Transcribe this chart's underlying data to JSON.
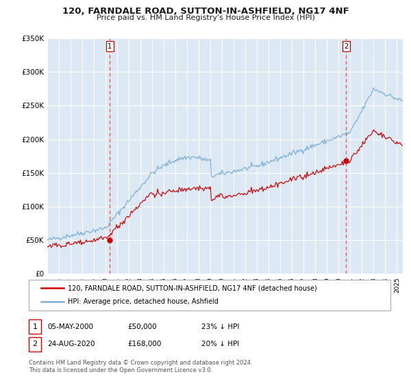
{
  "title": "120, FARNDALE ROAD, SUTTON-IN-ASHFIELD, NG17 4NF",
  "subtitle": "Price paid vs. HM Land Registry's House Price Index (HPI)",
  "plot_bg_color": "#dce9f5",
  "hpi_color": "#7bafd4",
  "price_color": "#cc0000",
  "purchase1_year": 2000.35,
  "purchase1_price": 50000,
  "purchase2_year": 2020.65,
  "purchase2_price": 168000,
  "legend_price_label": "120, FARNDALE ROAD, SUTTON-IN-ASHFIELD, NG17 4NF (detached house)",
  "legend_hpi_label": "HPI: Average price, detached house, Ashfield",
  "annotation1_date": "05-MAY-2000",
  "annotation1_price": "£50,000",
  "annotation1_pct": "23% ↓ HPI",
  "annotation2_date": "24-AUG-2020",
  "annotation2_price": "£168,000",
  "annotation2_pct": "20% ↓ HPI",
  "footer": "Contains HM Land Registry data © Crown copyright and database right 2024.\nThis data is licensed under the Open Government Licence v3.0.",
  "grid_color": "#ffffff",
  "dashed_color": "#ff4444",
  "y_ticks": [
    0,
    50000,
    100000,
    150000,
    200000,
    250000,
    300000,
    350000
  ],
  "y_tick_labels": [
    "£0",
    "£50K",
    "£100K",
    "£150K",
    "£200K",
    "£250K",
    "£300K",
    "£350K"
  ]
}
